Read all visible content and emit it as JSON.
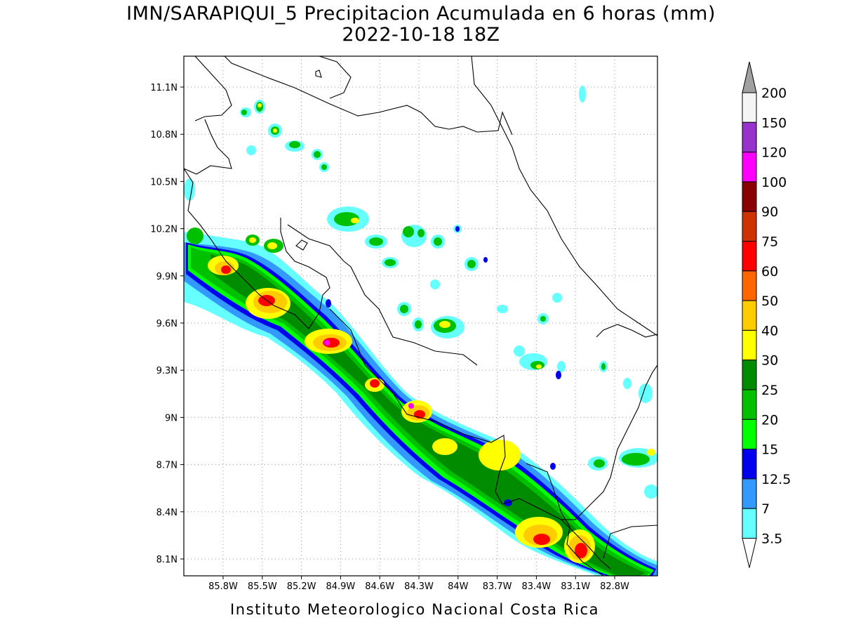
{
  "title": {
    "line1": "IMN/SARAPIQUI_5 Precipitacion Acumulada en 6 horas (mm)",
    "line2": "2022-10-18 18Z"
  },
  "footer": "Instituto Meteorologico Nacional Costa Rica",
  "map": {
    "lon_ticks": [
      "85.8W",
      "85.5W",
      "85.2W",
      "84.9W",
      "84.6W",
      "84.3W",
      "84W",
      "83.7W",
      "83.4W",
      "83.1W",
      "82.8W"
    ],
    "lat_ticks": [
      "11.1N",
      "10.8N",
      "10.5N",
      "10.2N",
      "9.9N",
      "9.6N",
      "9.3N",
      "9N",
      "8.7N",
      "8.4N",
      "8.1N"
    ],
    "lon_values": [
      -85.8,
      -85.5,
      -85.2,
      -84.9,
      -84.6,
      -84.3,
      -84.0,
      -83.7,
      -83.4,
      -83.1,
      -82.8
    ],
    "lat_values": [
      11.1,
      10.8,
      10.5,
      10.2,
      9.9,
      9.6,
      9.3,
      9.0,
      8.7,
      8.4,
      8.1
    ],
    "grid": true
  },
  "colorbar": {
    "levels": [
      "200",
      "150",
      "120",
      "100",
      "90",
      "75",
      "60",
      "50",
      "40",
      "30",
      "25",
      "20",
      "15",
      "12.5",
      "7",
      "3.5"
    ],
    "colors": [
      "#a0a0a0",
      "#f5f5f5",
      "#9932cc",
      "#ff00ff",
      "#8b0000",
      "#cc3300",
      "#ff0000",
      "#ff6600",
      "#ffcc00",
      "#ffff00",
      "#008b00",
      "#00c000",
      "#00ff00",
      "#0000ee",
      "#3399ff",
      "#66ffff"
    ]
  }
}
